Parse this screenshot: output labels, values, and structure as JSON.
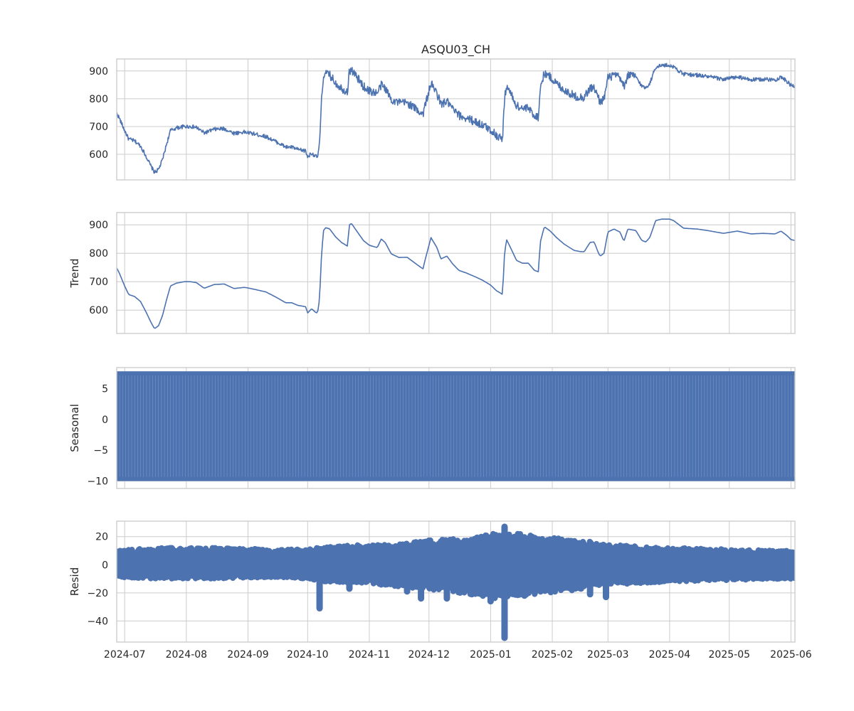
{
  "chart_data": [
    {
      "type": "line",
      "title": "ASQU03_CH",
      "ylabel": "",
      "xlim": [
        "2024-06-27",
        "2025-06-03"
      ],
      "ylim": [
        508,
        943
      ],
      "yticks": [
        600,
        700,
        800,
        900
      ],
      "grid": true,
      "color": "#4c72b0",
      "noise": 7,
      "x": [
        "2024-06-27",
        "2024-06-28",
        "2024-07-01",
        "2024-07-03",
        "2024-07-06",
        "2024-07-09",
        "2024-07-12",
        "2024-07-14",
        "2024-07-16",
        "2024-07-18",
        "2024-07-20",
        "2024-07-22",
        "2024-07-24",
        "2024-07-27",
        "2024-07-31",
        "2024-08-03",
        "2024-08-06",
        "2024-08-10",
        "2024-08-15",
        "2024-08-20",
        "2024-08-25",
        "2024-08-30",
        "2024-09-01",
        "2024-09-05",
        "2024-09-10",
        "2024-09-15",
        "2024-09-20",
        "2024-09-23",
        "2024-09-26",
        "2024-09-30",
        "2024-10-01",
        "2024-10-03",
        "2024-10-05",
        "2024-10-06",
        "2024-10-07",
        "2024-10-08",
        "2024-10-09",
        "2024-10-10",
        "2024-10-12",
        "2024-10-15",
        "2024-10-18",
        "2024-10-21",
        "2024-10-22",
        "2024-10-23",
        "2024-10-26",
        "2024-10-29",
        "2024-11-01",
        "2024-11-05",
        "2024-11-07",
        "2024-11-09",
        "2024-11-12",
        "2024-11-16",
        "2024-11-20",
        "2024-11-25",
        "2024-11-28",
        "2024-11-29",
        "2024-12-02",
        "2024-12-05",
        "2024-12-07",
        "2024-12-10",
        "2024-12-13",
        "2024-12-16",
        "2024-12-20",
        "2024-12-24",
        "2024-12-28",
        "2025-01-01",
        "2025-01-04",
        "2025-01-06",
        "2025-01-07",
        "2025-01-08",
        "2025-01-09",
        "2025-01-11",
        "2025-01-14",
        "2025-01-17",
        "2025-01-20",
        "2025-01-23",
        "2025-01-25",
        "2025-01-26",
        "2025-01-28",
        "2025-01-31",
        "2025-02-03",
        "2025-02-07",
        "2025-02-12",
        "2025-02-15",
        "2025-02-17",
        "2025-02-20",
        "2025-02-22",
        "2025-02-24",
        "2025-02-25",
        "2025-02-27",
        "2025-03-01",
        "2025-03-04",
        "2025-03-07",
        "2025-03-09",
        "2025-03-11",
        "2025-03-15",
        "2025-03-18",
        "2025-03-20",
        "2025-03-22",
        "2025-03-25",
        "2025-03-28",
        "2025-04-01",
        "2025-04-03",
        "2025-04-08",
        "2025-04-15",
        "2025-04-20",
        "2025-04-28",
        "2025-05-05",
        "2025-05-12",
        "2025-05-18",
        "2025-05-24",
        "2025-05-27",
        "2025-05-30",
        "2025-06-01",
        "2025-06-03"
      ],
      "y": [
        748,
        735,
        685,
        655,
        648,
        630,
        590,
        560,
        535,
        545,
        580,
        635,
        685,
        695,
        700,
        700,
        697,
        677,
        690,
        692,
        676,
        680,
        678,
        672,
        664,
        646,
        626,
        626,
        617,
        612,
        590,
        605,
        592,
        590,
        640,
        800,
        880,
        890,
        886,
        858,
        838,
        825,
        900,
        905,
        875,
        845,
        828,
        820,
        850,
        838,
        798,
        785,
        786,
        760,
        745,
        775,
        855,
        820,
        780,
        790,
        762,
        740,
        730,
        718,
        705,
        688,
        668,
        660,
        655,
        800,
        848,
        820,
        775,
        765,
        765,
        740,
        735,
        840,
        893,
        878,
        856,
        832,
        810,
        806,
        805,
        838,
        840,
        805,
        790,
        800,
        875,
        885,
        875,
        842,
        885,
        880,
        845,
        840,
        855,
        915,
        920,
        920,
        915,
        888,
        885,
        880,
        870,
        878,
        868,
        870,
        868,
        878,
        862,
        848,
        845
      ]
    },
    {
      "type": "line",
      "title": "",
      "ylabel": "Trend",
      "xlim": [
        "2024-06-27",
        "2025-06-03"
      ],
      "ylim": [
        518,
        943
      ],
      "yticks": [
        600,
        700,
        800,
        900
      ],
      "grid": true,
      "color": "#4c72b0",
      "noise": 0,
      "x": [
        "2024-06-27",
        "2024-06-28",
        "2024-07-01",
        "2024-07-03",
        "2024-07-06",
        "2024-07-09",
        "2024-07-12",
        "2024-07-14",
        "2024-07-16",
        "2024-07-18",
        "2024-07-20",
        "2024-07-22",
        "2024-07-24",
        "2024-07-27",
        "2024-07-31",
        "2024-08-03",
        "2024-08-06",
        "2024-08-10",
        "2024-08-15",
        "2024-08-20",
        "2024-08-25",
        "2024-08-30",
        "2024-09-01",
        "2024-09-05",
        "2024-09-10",
        "2024-09-15",
        "2024-09-20",
        "2024-09-23",
        "2024-09-26",
        "2024-09-30",
        "2024-10-01",
        "2024-10-03",
        "2024-10-05",
        "2024-10-06",
        "2024-10-07",
        "2024-10-08",
        "2024-10-09",
        "2024-10-10",
        "2024-10-12",
        "2024-10-15",
        "2024-10-18",
        "2024-10-21",
        "2024-10-22",
        "2024-10-23",
        "2024-10-26",
        "2024-10-29",
        "2024-11-01",
        "2024-11-05",
        "2024-11-07",
        "2024-11-09",
        "2024-11-12",
        "2024-11-16",
        "2024-11-20",
        "2024-11-25",
        "2024-11-28",
        "2024-11-29",
        "2024-12-02",
        "2024-12-05",
        "2024-12-07",
        "2024-12-10",
        "2024-12-13",
        "2024-12-16",
        "2024-12-20",
        "2024-12-24",
        "2024-12-28",
        "2025-01-01",
        "2025-01-04",
        "2025-01-06",
        "2025-01-07",
        "2025-01-08",
        "2025-01-09",
        "2025-01-11",
        "2025-01-14",
        "2025-01-17",
        "2025-01-20",
        "2025-01-23",
        "2025-01-25",
        "2025-01-26",
        "2025-01-28",
        "2025-01-31",
        "2025-02-03",
        "2025-02-07",
        "2025-02-12",
        "2025-02-15",
        "2025-02-17",
        "2025-02-20",
        "2025-02-22",
        "2025-02-24",
        "2025-02-25",
        "2025-02-27",
        "2025-03-01",
        "2025-03-04",
        "2025-03-07",
        "2025-03-09",
        "2025-03-11",
        "2025-03-15",
        "2025-03-18",
        "2025-03-20",
        "2025-03-22",
        "2025-03-25",
        "2025-03-28",
        "2025-04-01",
        "2025-04-03",
        "2025-04-08",
        "2025-04-15",
        "2025-04-20",
        "2025-04-28",
        "2025-05-05",
        "2025-05-12",
        "2025-05-18",
        "2025-05-24",
        "2025-05-27",
        "2025-05-30",
        "2025-06-01",
        "2025-06-03"
      ],
      "y": [
        748,
        735,
        685,
        655,
        648,
        630,
        590,
        560,
        535,
        545,
        580,
        635,
        685,
        695,
        700,
        700,
        697,
        677,
        690,
        692,
        676,
        680,
        678,
        672,
        664,
        646,
        626,
        626,
        617,
        612,
        590,
        605,
        592,
        590,
        640,
        800,
        880,
        890,
        886,
        858,
        838,
        825,
        900,
        905,
        875,
        845,
        828,
        820,
        850,
        838,
        798,
        785,
        786,
        760,
        745,
        775,
        855,
        820,
        780,
        790,
        762,
        740,
        730,
        718,
        705,
        688,
        668,
        660,
        655,
        800,
        848,
        820,
        775,
        765,
        765,
        740,
        735,
        840,
        893,
        878,
        856,
        832,
        810,
        806,
        805,
        838,
        840,
        805,
        790,
        800,
        875,
        885,
        875,
        842,
        885,
        880,
        845,
        840,
        855,
        915,
        920,
        920,
        915,
        888,
        885,
        880,
        870,
        878,
        868,
        870,
        868,
        878,
        862,
        848,
        845
      ]
    },
    {
      "type": "area",
      "title": "",
      "ylabel": "Seasonal",
      "xlim": [
        "2024-06-27",
        "2025-06-03"
      ],
      "ylim": [
        -11.2,
        8.4
      ],
      "yticks": [
        -10,
        -5,
        0,
        5
      ],
      "grid": true,
      "color": "#4c72b0",
      "band": [
        -10,
        7.8
      ],
      "period_days": 1.5
    },
    {
      "type": "scatter",
      "title": "",
      "ylabel": "Resid",
      "xlim": [
        "2024-06-27",
        "2025-06-03"
      ],
      "ylim": [
        -55,
        31
      ],
      "yticks": [
        -40,
        -20,
        0,
        20
      ],
      "grid": true,
      "color": "#4c72b0",
      "envelope_x": [
        "2024-06-27",
        "2024-07-15",
        "2024-08-15",
        "2024-09-15",
        "2024-10-01",
        "2024-10-10",
        "2024-11-01",
        "2024-11-15",
        "2024-12-01",
        "2024-12-20",
        "2025-01-01",
        "2025-01-15",
        "2025-02-01",
        "2025-02-15",
        "2025-03-01",
        "2025-03-15",
        "2025-04-01",
        "2025-05-01",
        "2025-06-03"
      ],
      "envelope_top": [
        9,
        11,
        11,
        10,
        10,
        12,
        13,
        13,
        16,
        17,
        20,
        20,
        18,
        16,
        13,
        12,
        11,
        10,
        9
      ],
      "envelope_bottom": [
        -8,
        -9,
        -9,
        -8,
        -9,
        -11,
        -12,
        -14,
        -16,
        -19,
        -22,
        -20,
        -18,
        -16,
        -13,
        -12,
        -11,
        -10,
        -9
      ],
      "spikes": [
        {
          "x": "2024-10-07",
          "y": -31
        },
        {
          "x": "2024-10-22",
          "y": -17
        },
        {
          "x": "2024-11-07",
          "y": -14
        },
        {
          "x": "2024-11-20",
          "y": -19
        },
        {
          "x": "2024-11-27",
          "y": -24
        },
        {
          "x": "2024-12-10",
          "y": -24
        },
        {
          "x": "2025-01-01",
          "y": -26
        },
        {
          "x": "2025-01-08",
          "y": -52
        },
        {
          "x": "2025-01-08",
          "y": 27
        },
        {
          "x": "2025-01-18",
          "y": -22
        },
        {
          "x": "2025-02-20",
          "y": -21
        },
        {
          "x": "2025-02-28",
          "y": -23
        }
      ]
    }
  ],
  "x_ticks": [
    "2024-07",
    "2024-08",
    "2024-09",
    "2024-10",
    "2024-11",
    "2024-12",
    "2025-01",
    "2025-02",
    "2025-03",
    "2025-04",
    "2025-05",
    "2025-06"
  ]
}
